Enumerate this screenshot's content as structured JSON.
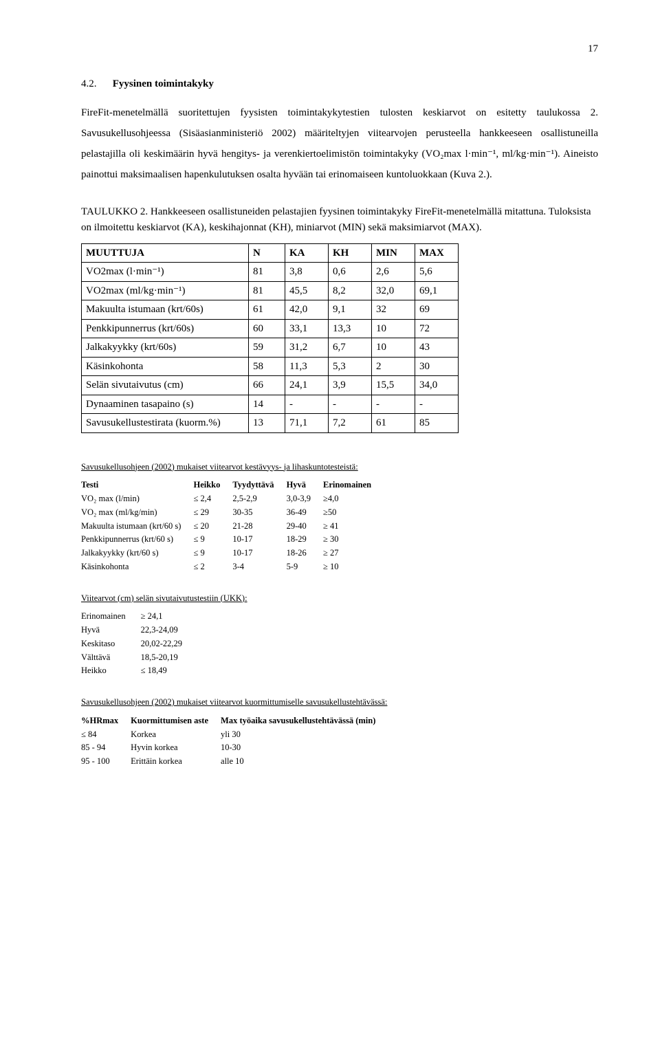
{
  "page_number": "17",
  "heading_num": "4.2.",
  "heading_text": "Fyysinen toimintakyky",
  "paragraph": "FireFit-menetelmällä suoritettujen fyysisten toimintakykytestien tulosten keskiarvot on esitetty taulukossa 2. Savusukellusohjeessa (Sisäasianministeriö 2002) määriteltyjen viitearvojen perusteella hankkeeseen osallistuneilla pelastajilla oli keskimäärin hyvä hengitys- ja verenkiertoelimistön toimintakyky (VO₂max l·min⁻¹, ml/kg·min⁻¹). Aineisto painottui maksimaalisen hapenkulutuksen osalta hyvään tai erinomaiseen kuntoluokkaan (Kuva 2.).",
  "table2_caption": "TAULUKKO 2. Hankkeeseen osallistuneiden pelastajien fyysinen toimintakyky FireFit-menetelmällä mitattuna. Tuloksista on ilmoitettu keskiarvot (KA), keskihajonnat (KH), miniarvot (MIN) sekä maksimiarvot (MAX).",
  "table2": {
    "headers": [
      "MUUTTUJA",
      "N",
      "KA",
      "KH",
      "MIN",
      "MAX"
    ],
    "col_widths": [
      "230px",
      "40px",
      "50px",
      "50px",
      "50px",
      "50px"
    ],
    "rows": [
      [
        "VO2max (l·min⁻¹)",
        "81",
        "3,8",
        "0,6",
        "2,6",
        "5,6"
      ],
      [
        "VO2max (ml/kg·min⁻¹)",
        "81",
        "45,5",
        "8,2",
        "32,0",
        "69,1"
      ],
      [
        "Makuulta istumaan (krt/60s)",
        "61",
        "42,0",
        "9,1",
        "32",
        "69"
      ],
      [
        "Penkkipunnerrus (krt/60s)",
        "60",
        "33,1",
        "13,3",
        "10",
        "72"
      ],
      [
        "Jalkakyykky (krt/60s)",
        "59",
        "31,2",
        "6,7",
        "10",
        "43"
      ],
      [
        "Käsinkohonta",
        "58",
        "11,3",
        "5,3",
        "2",
        "30"
      ],
      [
        "Selän sivutaivutus (cm)",
        "66",
        "24,1",
        "3,9",
        "15,5",
        "34,0"
      ],
      [
        "Dynaaminen tasapaino (s)",
        "14",
        "-",
        "-",
        "-",
        "-"
      ],
      [
        "Savusukellustestirata (kuorm.%)",
        "13",
        "71,1",
        "7,2",
        "61",
        "85"
      ]
    ]
  },
  "ref1_heading": "Savusukellusohjeen (2002) mukaiset viitearvot kestävyys- ja lihaskuntotesteistä:",
  "ref1": {
    "headers": [
      "Testi",
      "Heikko",
      "Tyydyttävä",
      "Hyvä",
      "Erinomainen"
    ],
    "rows": [
      [
        "VO₂ max (l/min)",
        "≤ 2,4",
        "2,5-2,9",
        "3,0-3,9",
        "≥4,0"
      ],
      [
        "VO₂ max (ml/kg/min)",
        "≤ 29",
        "30-35",
        "36-49",
        "≥50"
      ],
      [
        "Makuulta istumaan (krt/60 s)",
        "≤ 20",
        "21-28",
        "29-40",
        "≥ 41"
      ],
      [
        "Penkkipunnerrus (krt/60 s)",
        "≤ 9",
        "10-17",
        "18-29",
        "≥ 30"
      ],
      [
        "Jalkakyykky (krt/60 s)",
        "≤ 9",
        "10-17",
        "18-26",
        "≥ 27"
      ],
      [
        "Käsinkohonta",
        "≤ 2",
        "3-4",
        "5-9",
        "≥ 10"
      ]
    ]
  },
  "side_heading": "Viitearvot (cm) selän sivutaivutustestiin (UKK):",
  "side_rows": [
    [
      "Erinomainen",
      "≥ 24,1"
    ],
    [
      "Hyvä",
      "22,3-24,09"
    ],
    [
      "Keskitaso",
      "20,02-22,29"
    ],
    [
      "Välttävä",
      "18,5-20,19"
    ],
    [
      "Heikko",
      "≤ 18,49"
    ]
  ],
  "ref2_heading": "Savusukellusohjeen (2002) mukaiset viitearvot kuormittumiselle savusukellustehtävässä:",
  "ref2": {
    "headers": [
      "%HRmax",
      "Kuormittumisen aste",
      "Max työaika savusukellustehtävässä (min)"
    ],
    "rows": [
      [
        "≤ 84",
        "Korkea",
        "yli 30"
      ],
      [
        "85 - 94",
        "Hyvin korkea",
        "10-30"
      ],
      [
        "95 - 100",
        "Erittäin korkea",
        "alle 10"
      ]
    ]
  }
}
